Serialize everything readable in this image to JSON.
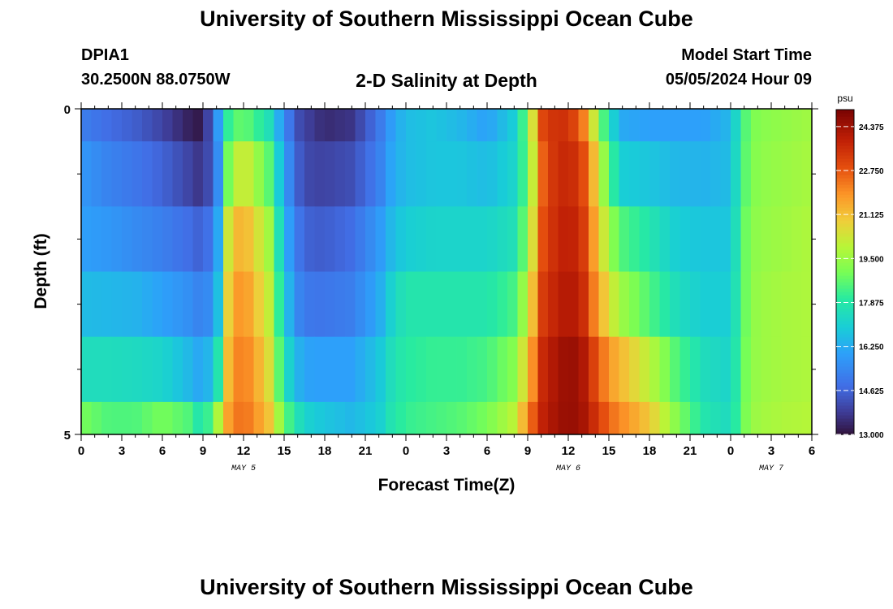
{
  "header": {
    "title": "University of Southern Mississippi Ocean Cube",
    "station": "DPIA1",
    "coords": "30.2500N  88.0750W",
    "plot_title": "2-D Salinity at Depth",
    "start_label": "Model Start Time",
    "start_time": "05/05/2024 Hour 09"
  },
  "footer": {
    "title": "University of Southern Mississippi Ocean Cube"
  },
  "chart_data": {
    "type": "heatmap",
    "title": "2-D Salinity at Depth",
    "xlabel": "Forecast Time(Z)",
    "ylabel": "Depth (ft)",
    "x_ticks": [
      "0",
      "3",
      "6",
      "9",
      "12",
      "15",
      "18",
      "21",
      "0",
      "3",
      "6",
      "9",
      "12",
      "15",
      "18",
      "21",
      "0",
      "3",
      "6"
    ],
    "x_hours": [
      0,
      3,
      6,
      9,
      12,
      15,
      18,
      21,
      24,
      27,
      30,
      33,
      36,
      39,
      42,
      45,
      48,
      51,
      54
    ],
    "date_labels": [
      {
        "label": "MAY 5",
        "hour": 12
      },
      {
        "label": "MAY 6",
        "hour": 36
      },
      {
        "label": "MAY 7",
        "hour": 51
      }
    ],
    "y_ticks": [
      "0",
      "5"
    ],
    "y_range": [
      0,
      5
    ],
    "x_range": [
      0,
      54
    ],
    "colorbar": {
      "unit": "psu",
      "min": 13.0,
      "max": 25.0,
      "ticks": [
        "13.000",
        "14.625",
        "16.250",
        "17.875",
        "19.500",
        "21.125",
        "22.750",
        "24.375"
      ],
      "tick_values": [
        13.0,
        14.625,
        16.25,
        17.875,
        19.5,
        21.125,
        22.75,
        24.375
      ]
    },
    "depth_bands": [
      {
        "from": 0.0,
        "to": 0.5
      },
      {
        "from": 0.5,
        "to": 1.5
      },
      {
        "from": 1.5,
        "to": 2.5
      },
      {
        "from": 2.5,
        "to": 3.5
      },
      {
        "from": 3.5,
        "to": 4.5
      },
      {
        "from": 4.5,
        "to": 5.0
      }
    ],
    "time_hours": [
      0,
      2,
      4,
      6,
      8,
      9,
      10,
      11,
      12,
      13,
      14,
      15,
      16,
      17,
      18,
      20,
      22,
      23,
      24,
      26,
      28,
      30,
      32,
      33,
      34,
      35,
      36,
      37,
      38,
      39,
      40,
      42,
      44,
      46,
      48,
      49,
      50,
      52,
      54
    ],
    "salinity": [
      [
        15.2,
        14.8,
        14.5,
        14.0,
        13.3,
        13.1,
        15.5,
        18.5,
        18.8,
        18.2,
        17.5,
        15.5,
        14.2,
        13.8,
        13.5,
        13.7,
        15.0,
        16.0,
        16.6,
        16.8,
        16.5,
        16.0,
        17.0,
        19.0,
        23.0,
        23.5,
        23.5,
        22.5,
        20.0,
        17.5,
        16.2,
        16.0,
        16.0,
        16.0,
        16.5,
        18.5,
        19.2,
        19.4,
        19.6
      ],
      [
        15.8,
        15.3,
        15.0,
        14.6,
        14.0,
        13.6,
        15.0,
        19.5,
        20.5,
        19.5,
        18.5,
        16.0,
        14.5,
        14.0,
        14.0,
        14.2,
        15.2,
        16.2,
        16.6,
        16.8,
        16.8,
        16.6,
        17.2,
        18.8,
        22.5,
        23.5,
        23.8,
        23.2,
        21.0,
        18.5,
        17.0,
        16.8,
        16.5,
        16.4,
        16.6,
        18.6,
        19.3,
        19.5,
        19.7
      ],
      [
        16.0,
        15.8,
        15.5,
        15.2,
        14.8,
        14.5,
        15.5,
        21.0,
        21.5,
        20.5,
        19.5,
        16.5,
        15.0,
        14.5,
        14.5,
        14.8,
        15.8,
        16.6,
        17.0,
        17.2,
        17.2,
        17.2,
        17.6,
        19.2,
        22.8,
        23.6,
        24.0,
        23.5,
        21.5,
        19.5,
        18.5,
        17.8,
        17.0,
        16.8,
        16.8,
        18.8,
        19.4,
        19.6,
        19.8
      ],
      [
        16.6,
        16.5,
        16.4,
        16.0,
        15.6,
        15.2,
        16.0,
        21.5,
        22.0,
        21.0,
        20.0,
        17.0,
        15.4,
        15.0,
        15.0,
        15.2,
        16.2,
        17.2,
        17.8,
        17.8,
        17.8,
        17.8,
        18.4,
        20.0,
        23.2,
        23.8,
        24.2,
        23.8,
        22.0,
        20.5,
        19.5,
        18.5,
        17.5,
        17.0,
        17.0,
        18.8,
        19.5,
        19.7,
        19.8
      ],
      [
        17.5,
        17.5,
        17.4,
        17.2,
        16.5,
        16.0,
        17.2,
        21.8,
        22.3,
        21.5,
        20.4,
        17.6,
        16.4,
        16.0,
        16.0,
        16.0,
        16.8,
        17.6,
        18.0,
        18.2,
        18.2,
        18.4,
        19.2,
        21.0,
        23.6,
        24.2,
        24.6,
        24.3,
        23.0,
        21.8,
        21.2,
        20.0,
        18.5,
        17.5,
        17.2,
        18.9,
        19.5,
        19.7,
        19.8
      ],
      [
        19.0,
        18.5,
        18.5,
        19.0,
        18.5,
        17.5,
        19.5,
        22.0,
        22.5,
        21.8,
        21.0,
        18.8,
        17.6,
        17.0,
        16.8,
        16.5,
        17.0,
        17.8,
        18.2,
        18.4,
        18.6,
        19.0,
        20.0,
        22.0,
        23.8,
        24.3,
        24.6,
        24.4,
        23.5,
        22.5,
        22.0,
        21.0,
        19.2,
        17.8,
        17.4,
        19.0,
        19.6,
        19.8,
        19.9
      ]
    ]
  }
}
